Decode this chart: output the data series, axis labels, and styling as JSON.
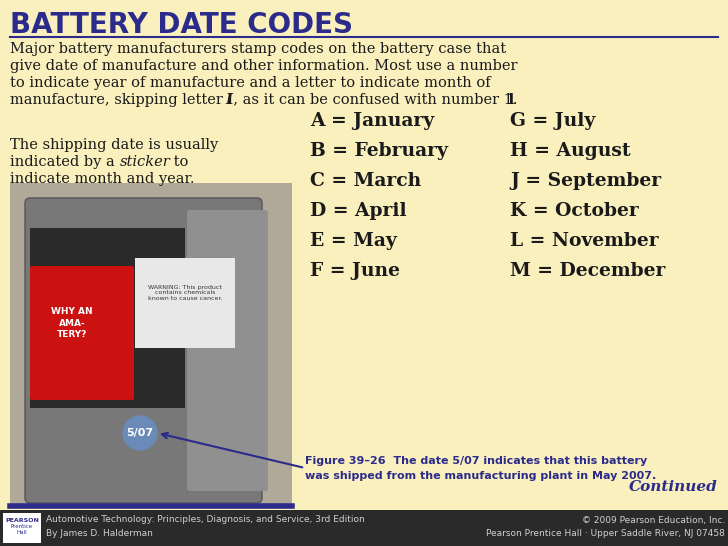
{
  "title": "BATTERY DATE CODES",
  "bg_color": "#FAF0BE",
  "title_color": "#2B2B8C",
  "title_fontsize": 20,
  "month_codes_left": [
    "A = January",
    "B = February",
    "C = March",
    "D = April",
    "E = May",
    "F = June"
  ],
  "month_codes_right": [
    "G = July",
    "H = August",
    "J = September",
    "K = October",
    "L = November",
    "M = December"
  ],
  "figure_caption_line1": "Figure 39–26  The date 5/07 indicates that this battery",
  "figure_caption_line2": "was shipped from the manufacturing plant in May 2007.",
  "continued_text": "Continued",
  "footer_left1": "Automotive Technology: Principles, Diagnosis, and Service, 3rd Edition",
  "footer_left2": "By James D. Halderman",
  "footer_right1": "© 2009 Pearson Education, Inc.",
  "footer_right2": "Pearson Prentice Hall · Upper Saddle River, NJ 07458",
  "separator_color": "#2B2B8C",
  "text_color": "#1a1a1a",
  "caption_color": "#2B2B8C",
  "continued_color": "#2B2B8C",
  "footer_bg": "#2a2a2a",
  "footer_text_color": "#d0d0d0",
  "arrow_color": "#2B2B8C",
  "sticker_color": "#6a8ab8",
  "sticker_text_color": "#ffffff"
}
